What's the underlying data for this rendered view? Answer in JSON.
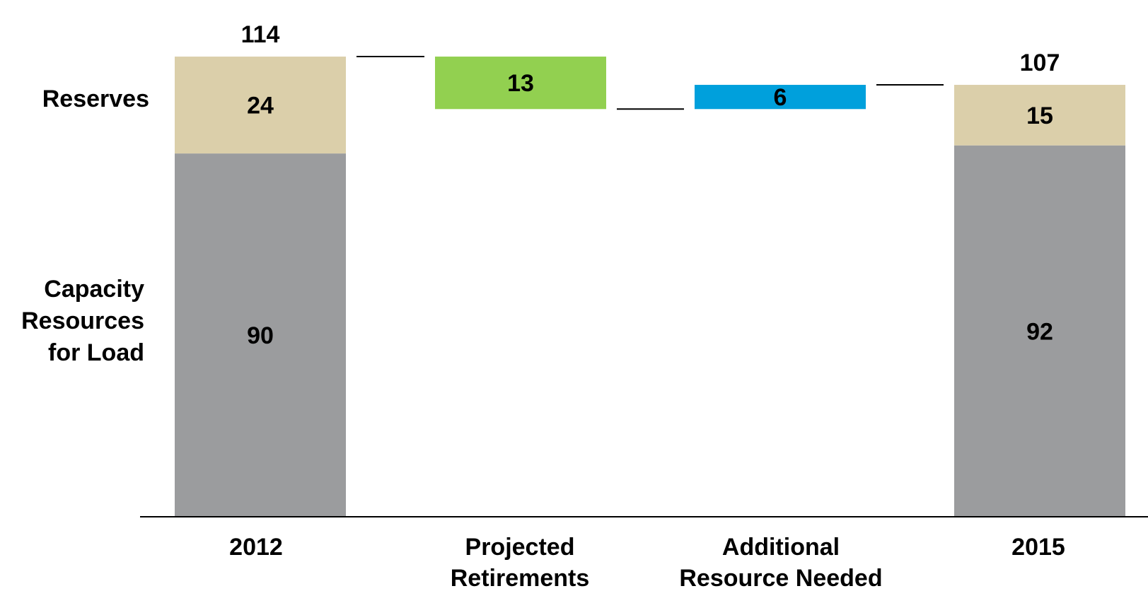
{
  "chart_data": {
    "type": "bar",
    "subtype": "waterfall",
    "title": "",
    "xlabel": "",
    "ylabel": "",
    "categories": [
      "2012",
      "Projected Retirements",
      "Additional Resource Needed",
      "2015"
    ],
    "row_labels": {
      "reserves": "Reserves",
      "capacity": [
        "Capacity",
        "Resources",
        "for Load"
      ]
    },
    "bars": [
      {
        "category": "2012",
        "kind": "stacked",
        "segments": [
          {
            "name": "Capacity Resources for Load",
            "value": 90,
            "label": "90"
          },
          {
            "name": "Reserves",
            "value": 24,
            "label": "24"
          }
        ],
        "total": 114,
        "total_label": "114"
      },
      {
        "category": "Projected Retirements",
        "kind": "floating",
        "from": 101,
        "to": 114,
        "value": 13,
        "label": "13"
      },
      {
        "category": "Additional Resource Needed",
        "kind": "floating",
        "from": 101,
        "to": 107,
        "value": 6,
        "label": "6"
      },
      {
        "category": "2015",
        "kind": "stacked",
        "segments": [
          {
            "name": "Capacity Resources for Load",
            "value": 92,
            "label": "92"
          },
          {
            "name": "Reserves",
            "value": 15,
            "label": "15"
          }
        ],
        "total": 107,
        "total_label": "107"
      }
    ],
    "connectors": [
      {
        "between": [
          "2012",
          "Projected Retirements"
        ],
        "level": 114
      },
      {
        "between": [
          "Projected Retirements",
          "Additional Resource Needed"
        ],
        "level": 101
      },
      {
        "between": [
          "Additional Resource Needed",
          "2015"
        ],
        "level": 107
      }
    ],
    "colors": {
      "capacity": "#9b9c9e",
      "reserves": "#dbcfaa",
      "retirements": "#92d050",
      "additional": "#00a0dc",
      "axis": "#000000",
      "text": "#000000"
    },
    "ylim": [
      0,
      114
    ],
    "grid": false,
    "legend": "none"
  }
}
